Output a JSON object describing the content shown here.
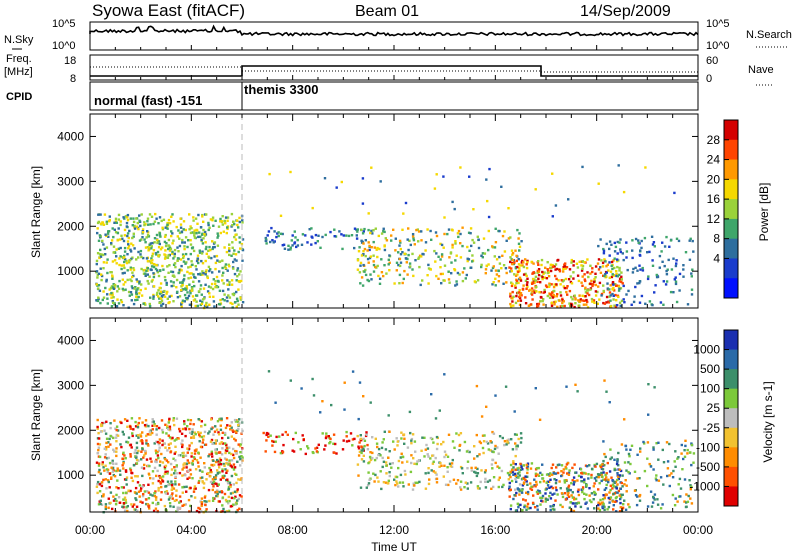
{
  "header": {
    "title": "Syowa East (fitACF)",
    "beam": "Beam 01",
    "date": "14/Sep/2009"
  },
  "strip_sky": {
    "left_label": "N.Sky",
    "right_label": "N.Search",
    "ticks_left": [
      "10^5",
      "10^0"
    ],
    "ticks_right": [
      "10^5",
      "10^0"
    ]
  },
  "strip_freq": {
    "left_label_1": "Freq.",
    "left_label_2": "[MHz]",
    "right_label": "Nave",
    "ticks_left": [
      "18",
      "8"
    ],
    "ticks_right": [
      "60",
      "0"
    ],
    "cpid_label": "CPID",
    "cpid_1": "normal (fast) -151",
    "cpid_2": "themis 3300"
  },
  "chart_data": [
    {
      "type": "heatmap",
      "title": "Power",
      "ylabel": "Slant Range [km]",
      "xlabel": "Time UT",
      "x_ticks": [
        "00:00",
        "04:00",
        "08:00",
        "12:00",
        "16:00",
        "20:00",
        "00:00"
      ],
      "xlim_hours": [
        0,
        24
      ],
      "y_ticks": [
        1000,
        2000,
        3000,
        4000
      ],
      "ylim": [
        180,
        4500
      ],
      "colorbar": {
        "label": "Power [dB]",
        "ticks": [
          "28",
          "24",
          "20",
          "16",
          "12",
          "8",
          "4"
        ],
        "colors": [
          "#d40000",
          "#ff4400",
          "#ff9900",
          "#f5d800",
          "#9ad23a",
          "#3fa66a",
          "#2e6e9e",
          "#1a3ccc",
          "#0010ff"
        ]
      }
    },
    {
      "type": "heatmap",
      "title": "Velocity",
      "ylabel": "Slant Range [km]",
      "xlabel": "Time UT",
      "x_ticks": [
        "00:00",
        "04:00",
        "08:00",
        "12:00",
        "16:00",
        "20:00",
        "00:00"
      ],
      "xlim_hours": [
        0,
        24
      ],
      "y_ticks": [
        1000,
        2000,
        3000,
        4000
      ],
      "ylim": [
        180,
        4500
      ],
      "colorbar": {
        "label": "Velocity [m s-1]",
        "ticks": [
          "1000",
          "500",
          "100",
          "25",
          "-25",
          "-100",
          "-500",
          "-1000"
        ],
        "colors": [
          "#1a2fb0",
          "#2a6aa8",
          "#3c8f6a",
          "#7cc93a",
          "#bdbdbd",
          "#f2c230",
          "#ff8c00",
          "#ff5000",
          "#e00000"
        ]
      }
    }
  ],
  "xlabel": "Time UT"
}
